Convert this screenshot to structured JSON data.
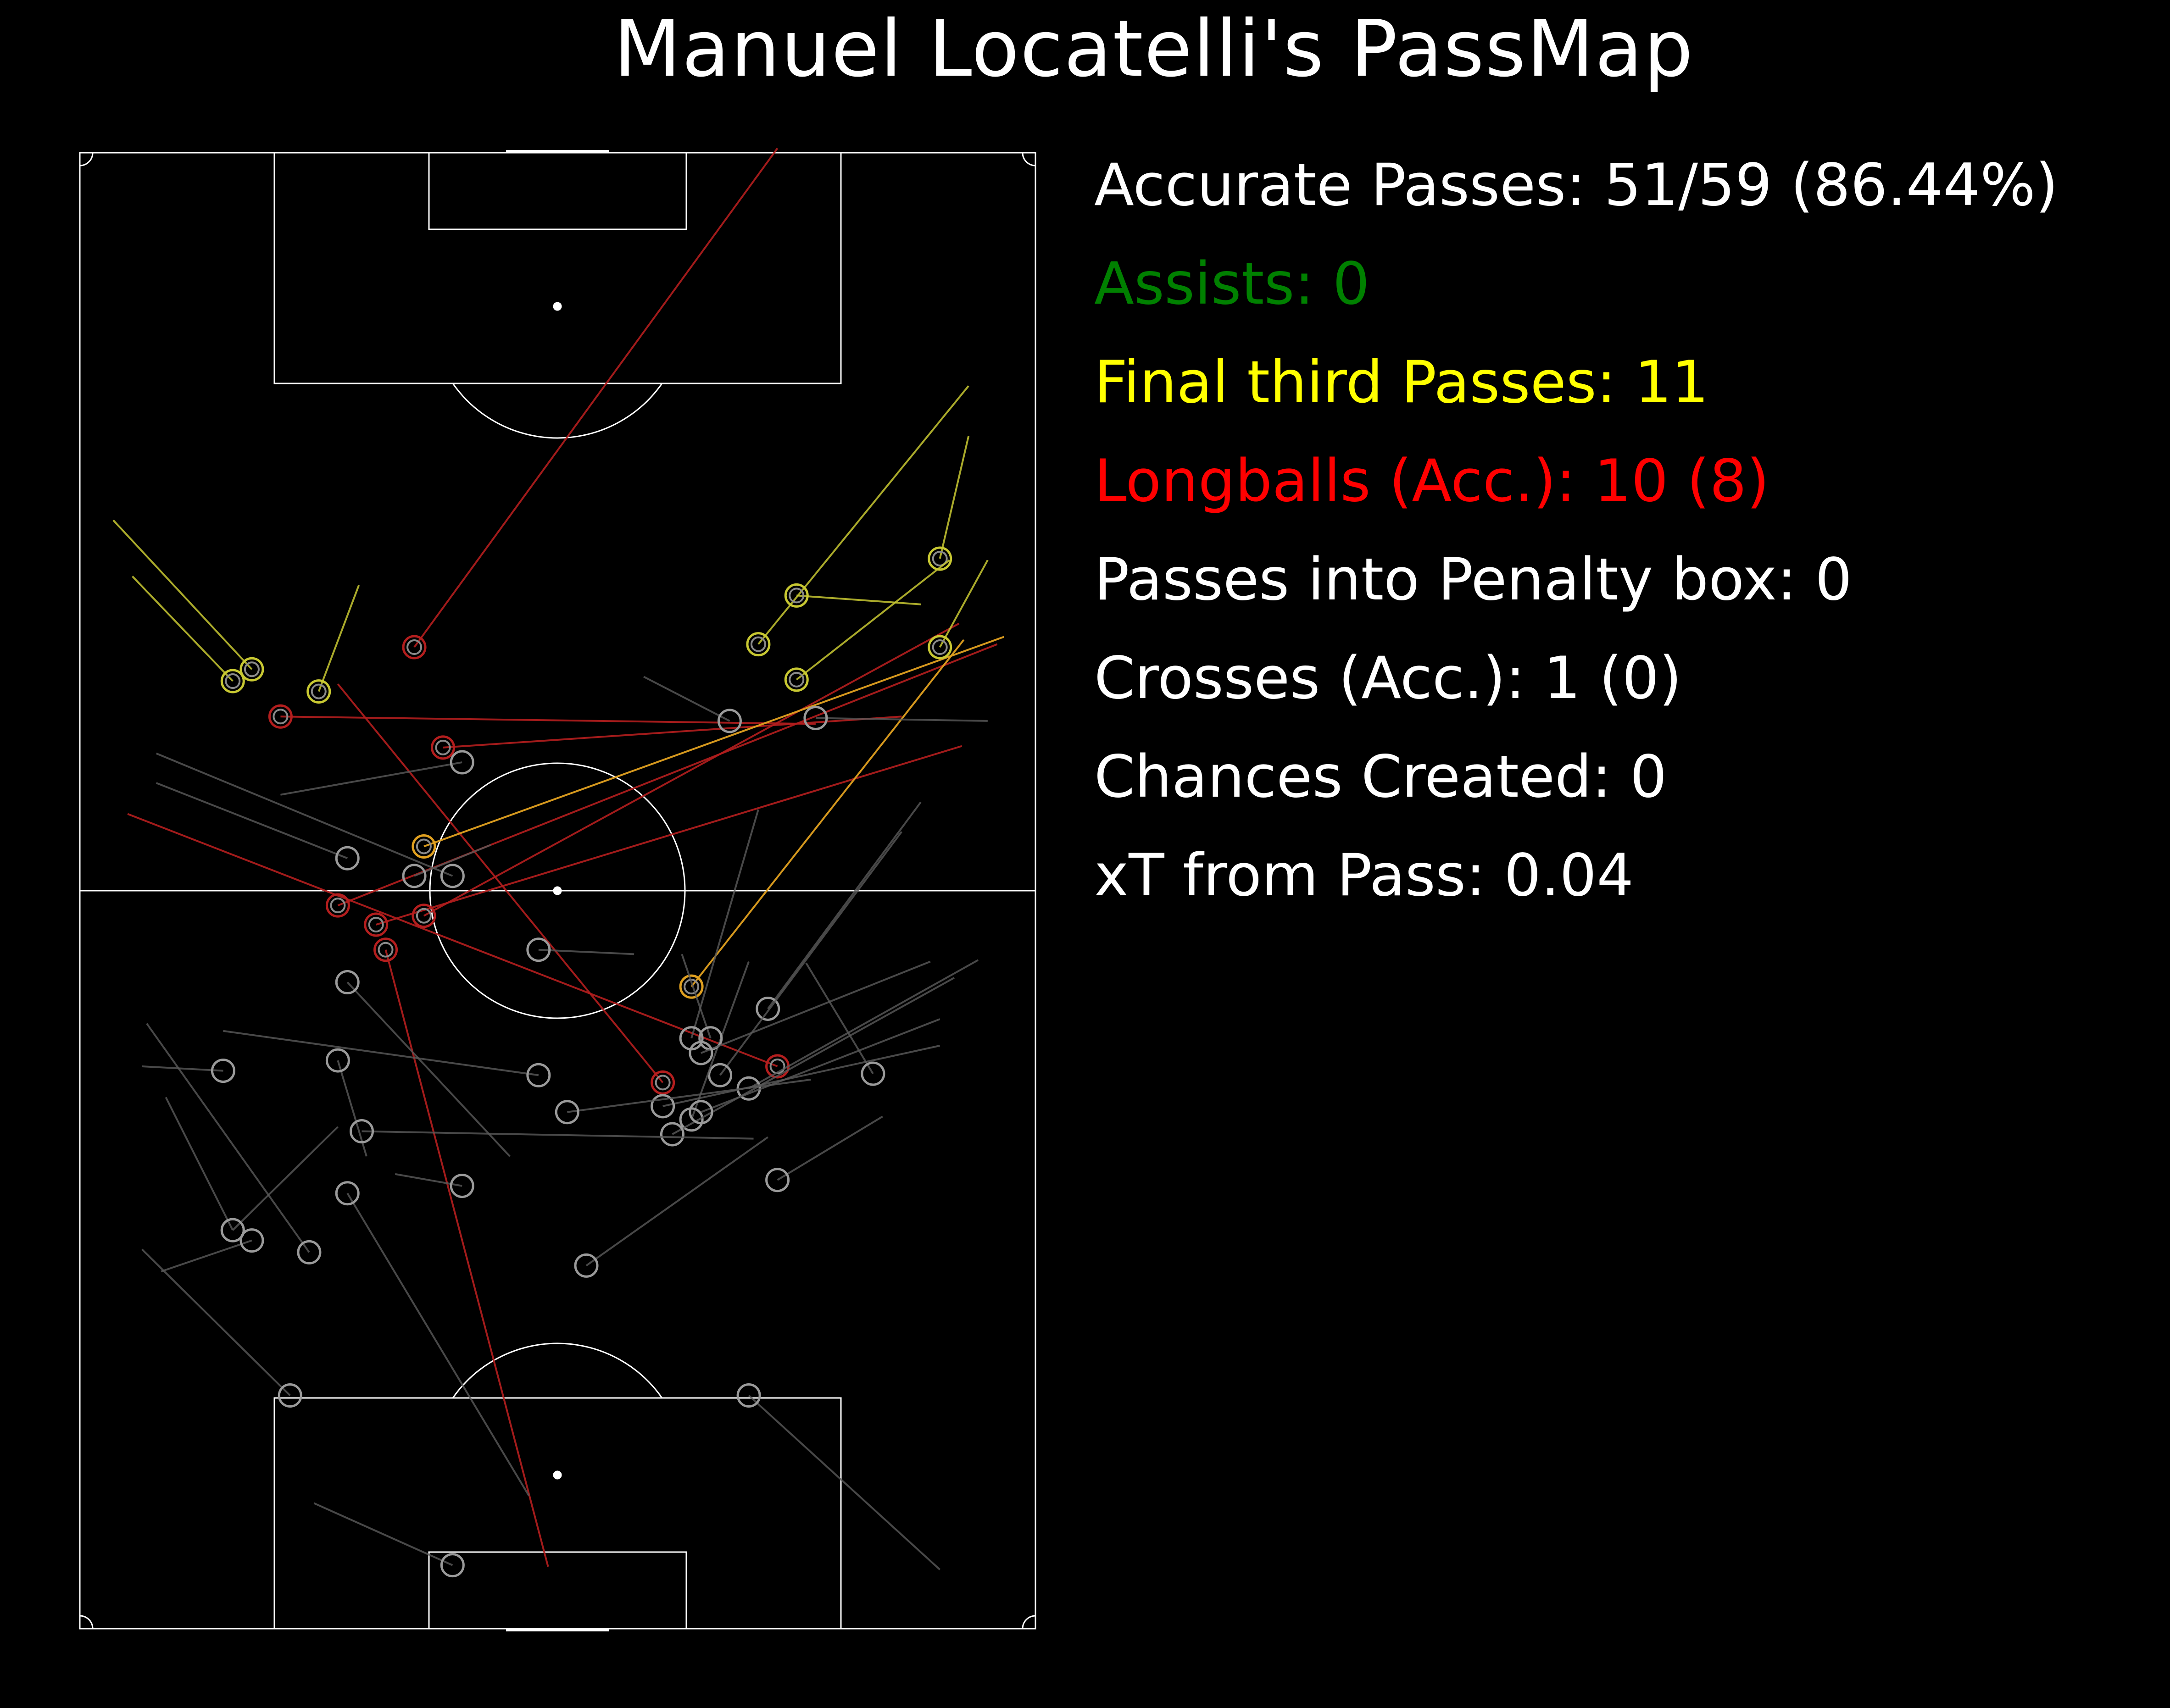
{
  "title": "Manuel Locatelli's PassMap",
  "stats": [
    {
      "text": "Accurate Passes: 51/59 (86.44%)",
      "color": "#ffffff"
    },
    {
      "text": "Assists: 0",
      "color": "#008000"
    },
    {
      "text": "Final third Passes: 11",
      "color": "#ffff00"
    },
    {
      "text": "Longballs (Acc.): 10 (8)",
      "color": "#ff0000"
    },
    {
      "text": "Passes into Penalty box: 0",
      "color": "#ffffff"
    },
    {
      "text": "Crosses (Acc.): 1 (0)",
      "color": "#ffffff"
    },
    {
      "text": "Chances Created: 0",
      "color": "#ffffff"
    },
    {
      "text": "xT from Pass: 0.04",
      "color": "#ffffff"
    }
  ],
  "colors": {
    "background": "#000000",
    "pitch_lines": "#ffffff",
    "regular_pass": "#5a5a5a",
    "final_third": "#c8c832",
    "longball": "#b41e1e",
    "final_third_longball": "#e0a020"
  },
  "chart_data": {
    "type": "scatter",
    "description_units": "pitch coordinates 0-100 (x across width, left to right; y along length, own goal at bottom = 0)",
    "passes": [
      {
        "type": "longball",
        "start": [
          73,
          100.3
        ],
        "end": [
          35,
          66.5
        ]
      },
      {
        "type": "longball",
        "start": [
          49,
          4.2
        ],
        "end": [
          32,
          46
        ]
      },
      {
        "type": "longball",
        "start": [
          27,
          64
        ],
        "end": [
          61,
          37
        ]
      },
      {
        "type": "longball",
        "start": [
          5,
          55.2
        ],
        "end": [
          73,
          38.1
        ]
      },
      {
        "type": "longball",
        "start": [
          92.3,
          59.8
        ],
        "end": [
          31,
          47.7
        ]
      },
      {
        "type": "longball",
        "start": [
          96,
          66.7
        ],
        "end": [
          27,
          49
        ]
      },
      {
        "type": "longball",
        "start": [
          77,
          61.3
        ],
        "end": [
          21,
          61.8
        ]
      },
      {
        "type": "longball",
        "start": [
          86,
          61.8
        ],
        "end": [
          38,
          59.7
        ]
      },
      {
        "type": "longball",
        "start": [
          92,
          68.1
        ],
        "end": [
          36,
          48.3
        ]
      },
      {
        "type": "longball_final",
        "start": [
          96.7,
          67.2
        ],
        "end": [
          36,
          53
        ]
      },
      {
        "type": "longball_final",
        "start": [
          92.5,
          67
        ],
        "end": [
          64,
          43.5
        ]
      },
      {
        "type": "final_third",
        "start": [
          93,
          84.2
        ],
        "end": [
          71,
          66.7
        ]
      },
      {
        "type": "final_third",
        "start": [
          93,
          80.8
        ],
        "end": [
          90,
          72.5
        ]
      },
      {
        "type": "final_third",
        "start": [
          91,
          72.4
        ],
        "end": [
          75,
          64.3
        ]
      },
      {
        "type": "final_third",
        "start": [
          88,
          69.4
        ],
        "end": [
          75,
          70
        ]
      },
      {
        "type": "final_third",
        "start": [
          95,
          72.4
        ],
        "end": [
          90,
          66.5
        ]
      },
      {
        "type": "final_third",
        "start": [
          3.5,
          75.1
        ],
        "end": [
          18,
          65
        ]
      },
      {
        "type": "final_third",
        "start": [
          5.5,
          71.3
        ],
        "end": [
          16,
          64.2
        ]
      },
      {
        "type": "final_third",
        "start": [
          29.2,
          70.7
        ],
        "end": [
          25,
          63.5
        ]
      },
      {
        "type": "regular",
        "start": [
          59,
          64.5
        ],
        "end": [
          68,
          61.5
        ]
      },
      {
        "type": "regular",
        "start": [
          95,
          61.5
        ],
        "end": [
          77,
          61.7
        ]
      },
      {
        "type": "regular",
        "start": [
          8,
          59.3
        ],
        "end": [
          39,
          51
        ]
      },
      {
        "type": "regular",
        "start": [
          8,
          57.3
        ],
        "end": [
          28,
          52.2
        ]
      },
      {
        "type": "regular",
        "start": [
          21,
          56.5
        ],
        "end": [
          40,
          58.7
        ]
      },
      {
        "type": "regular",
        "start": [
          43,
          53.1
        ],
        "end": [
          35,
          51
        ]
      },
      {
        "type": "regular",
        "start": [
          71,
          55.5
        ],
        "end": [
          64,
          40
        ]
      },
      {
        "type": "regular",
        "start": [
          88,
          56
        ],
        "end": [
          72,
          42
        ]
      },
      {
        "type": "regular",
        "start": [
          86,
          54
        ],
        "end": [
          67,
          37.5
        ]
      },
      {
        "type": "regular",
        "start": [
          70,
          45.2
        ],
        "end": [
          64,
          34.5
        ]
      },
      {
        "type": "regular",
        "start": [
          58,
          45.7
        ],
        "end": [
          48,
          46
        ]
      },
      {
        "type": "regular",
        "start": [
          63,
          45.7
        ],
        "end": [
          66,
          40
        ]
      },
      {
        "type": "regular",
        "start": [
          76,
          45.1
        ],
        "end": [
          83,
          37.6
        ]
      },
      {
        "type": "regular",
        "start": [
          89,
          45.2
        ],
        "end": [
          65,
          39
        ]
      },
      {
        "type": "regular",
        "start": [
          94,
          45.3
        ],
        "end": [
          70,
          36.6
        ]
      },
      {
        "type": "regular",
        "start": [
          91.5,
          44.1
        ],
        "end": [
          62,
          33.5
        ]
      },
      {
        "type": "regular",
        "start": [
          90,
          41.3
        ],
        "end": [
          65,
          35
        ]
      },
      {
        "type": "regular",
        "start": [
          90,
          39.5
        ],
        "end": [
          61,
          35.4
        ]
      },
      {
        "type": "regular",
        "start": [
          76.5,
          37.2
        ],
        "end": [
          51,
          35
        ]
      },
      {
        "type": "regular",
        "start": [
          7,
          41
        ],
        "end": [
          24,
          25.5
        ]
      },
      {
        "type": "regular",
        "start": [
          15,
          40.5
        ],
        "end": [
          48,
          37.5
        ]
      },
      {
        "type": "regular",
        "start": [
          6.5,
          38.1
        ],
        "end": [
          15,
          37.8
        ]
      },
      {
        "type": "regular",
        "start": [
          9,
          36
        ],
        "end": [
          16,
          27
        ]
      },
      {
        "type": "regular",
        "start": [
          27,
          34
        ],
        "end": [
          16,
          27
        ]
      },
      {
        "type": "regular",
        "start": [
          30,
          32
        ],
        "end": [
          27,
          38.5
        ]
      },
      {
        "type": "regular",
        "start": [
          45,
          32
        ],
        "end": [
          28,
          43.8
        ]
      },
      {
        "type": "regular",
        "start": [
          70.5,
          33.2
        ],
        "end": [
          29.5,
          33.7
        ]
      },
      {
        "type": "regular",
        "start": [
          33,
          30.8
        ],
        "end": [
          40,
          30
        ]
      },
      {
        "type": "regular",
        "start": [
          72,
          33.3
        ],
        "end": [
          53,
          24.6
        ]
      },
      {
        "type": "regular",
        "start": [
          84,
          34.7
        ],
        "end": [
          73,
          30.4
        ]
      },
      {
        "type": "regular",
        "start": [
          6.5,
          25.7
        ],
        "end": [
          22,
          15.8
        ]
      },
      {
        "type": "regular",
        "start": [
          8.5,
          24.2
        ],
        "end": [
          18,
          26.3
        ]
      },
      {
        "type": "regular",
        "start": [
          24.5,
          8.5
        ],
        "end": [
          39,
          4.3
        ]
      },
      {
        "type": "regular",
        "start": [
          47,
          9
        ],
        "end": [
          28,
          29.5
        ]
      },
      {
        "type": "regular",
        "start": [
          90,
          4
        ],
        "end": [
          70,
          15.8
        ]
      }
    ]
  }
}
